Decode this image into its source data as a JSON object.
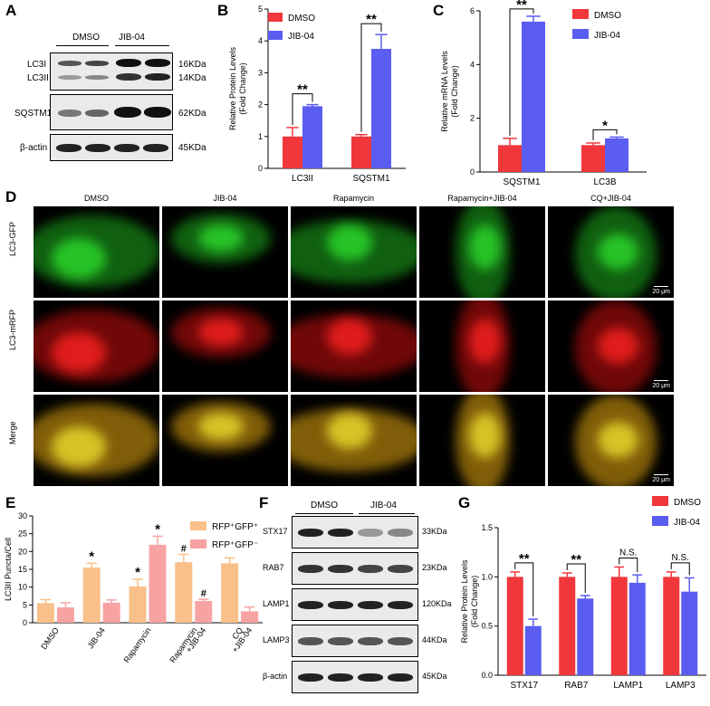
{
  "panels": {
    "A": "A",
    "B": "B",
    "C": "C",
    "D": "D",
    "E": "E",
    "F": "F",
    "G": "G"
  },
  "panelA": {
    "groups": [
      "DMSO",
      "JIB-04"
    ],
    "rows": [
      {
        "left": "LC3I",
        "right": "16KDa"
      },
      {
        "left": "LC3II",
        "right": "14KDa"
      },
      {
        "left": "SQSTM1",
        "right": "62KDa"
      },
      {
        "left": "β-actin",
        "right": "45KDa"
      }
    ]
  },
  "panelD": {
    "columns": [
      "DMSO",
      "JIB-04",
      "Rapamycin",
      "Rapamycin+JIB-04",
      "CQ+JIB-04"
    ],
    "rows": [
      "LC3-GFP",
      "LC3-mRFP",
      "Merge"
    ],
    "scale": "20 μm"
  },
  "panelF": {
    "groups": [
      "DMSO",
      "JIB-04"
    ],
    "rows": [
      {
        "left": "STX17",
        "right": "33KDa"
      },
      {
        "left": "RAB7",
        "right": "23KDa"
      },
      {
        "left": "LAMP1",
        "right": "120KDa"
      },
      {
        "left": "LAMP3",
        "right": "44KDa"
      },
      {
        "left": "β-actin",
        "right": "45KDa"
      }
    ]
  },
  "colors": {
    "red": "#f0373c",
    "blue": "#5a5df0",
    "orange": "#f9c08a",
    "pink": "#f7a3a3"
  },
  "chart_data": [
    {
      "id": "B",
      "type": "bar",
      "ylabel": "Relative Protein Levels\n(Fold Change)",
      "categories": [
        "LC3II",
        "SQSTM1"
      ],
      "series": [
        {
          "name": "DMSO",
          "values": [
            1.0,
            1.0
          ],
          "errors": [
            0.28,
            0.06
          ]
        },
        {
          "name": "JIB-04",
          "values": [
            1.95,
            3.75
          ],
          "errors": [
            0.05,
            0.45
          ]
        }
      ],
      "ylim": [
        0,
        5
      ],
      "yticks": [
        0,
        1,
        2,
        3,
        4,
        5
      ],
      "significance": [
        "**",
        "**"
      ]
    },
    {
      "id": "C",
      "type": "bar",
      "ylabel": "Relative mRNA Levels\n(Fold Change)",
      "categories": [
        "SQSTM1",
        "LC3B"
      ],
      "series": [
        {
          "name": "DMSO",
          "values": [
            1.0,
            1.0
          ],
          "errors": [
            0.25,
            0.08
          ]
        },
        {
          "name": "JIB-04",
          "values": [
            5.6,
            1.25
          ],
          "errors": [
            0.2,
            0.05
          ]
        }
      ],
      "ylim": [
        0,
        6
      ],
      "yticks": [
        0,
        2,
        4,
        6
      ],
      "significance": [
        "**",
        "*"
      ]
    },
    {
      "id": "E",
      "type": "bar",
      "ylabel": "LC3II Puncta/Cell",
      "categories": [
        "DMSO",
        "JIB-04",
        "Rapamycin",
        "Rapamycin\n+JIB-04",
        "CQ\n+JIB-04"
      ],
      "series": [
        {
          "name": "RFP⁺GFP⁺",
          "values": [
            5.5,
            15.5,
            10.2,
            17.0,
            16.7
          ],
          "errors": [
            1.0,
            1.2,
            2.0,
            2.2,
            1.5
          ]
        },
        {
          "name": "RFP⁺GFP⁻",
          "values": [
            4.3,
            5.6,
            21.9,
            6.1,
            3.2
          ],
          "errors": [
            1.3,
            0.8,
            2.4,
            0.5,
            1.2
          ]
        }
      ],
      "ylim": [
        0,
        30
      ],
      "yticks": [
        0,
        5,
        10,
        15,
        20,
        25,
        30
      ],
      "annotations": [
        {
          "bar": [
            1,
            0
          ],
          "text": "*"
        },
        {
          "bar": [
            2,
            0
          ],
          "text": "*"
        },
        {
          "bar": [
            2,
            1
          ],
          "text": "*"
        },
        {
          "bar": [
            3,
            0
          ],
          "text": "#"
        },
        {
          "bar": [
            3,
            1
          ],
          "text": "#"
        }
      ]
    },
    {
      "id": "G",
      "type": "bar",
      "ylabel": "Relative Protein Levels\n(Fold Change)",
      "categories": [
        "STX17",
        "RAB7",
        "LAMP1",
        "LAMP3"
      ],
      "series": [
        {
          "name": "DMSO",
          "values": [
            1.0,
            1.0,
            1.0,
            1.0
          ],
          "errors": [
            0.05,
            0.04,
            0.1,
            0.05
          ]
        },
        {
          "name": "JIB-04",
          "values": [
            0.5,
            0.78,
            0.94,
            0.85
          ],
          "errors": [
            0.07,
            0.03,
            0.08,
            0.14
          ]
        }
      ],
      "ylim": [
        0,
        1.5
      ],
      "yticks": [
        0.0,
        0.5,
        1.0,
        1.5
      ],
      "significance": [
        "**",
        "**",
        "N.S.",
        "N.S."
      ]
    }
  ]
}
